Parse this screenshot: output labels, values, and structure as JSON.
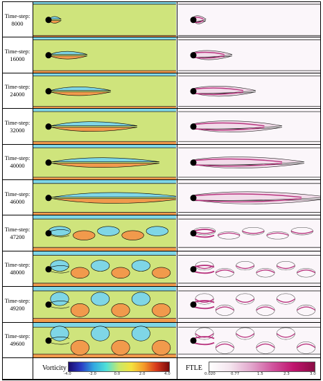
{
  "rows": [
    {
      "label": "Time-step:",
      "step": "8000",
      "stage": 0
    },
    {
      "label": "Time-step:",
      "step": "16000",
      "stage": 1
    },
    {
      "label": "Time-step:",
      "step": "24000",
      "stage": 2
    },
    {
      "label": "Time-step:",
      "step": "32000",
      "stage": 3
    },
    {
      "label": "Time-step:",
      "step": "40000",
      "stage": 4
    },
    {
      "label": "Time-step:",
      "step": "46000",
      "stage": 5
    },
    {
      "label": "Time-step:",
      "step": "47200",
      "stage": 6
    },
    {
      "label": "Time-step:",
      "step": "48000",
      "stage": 7
    },
    {
      "label": "Time-step:",
      "step": "49200",
      "stage": 8
    },
    {
      "label": "Time-step:",
      "step": "49600",
      "stage": 9
    }
  ],
  "colorbars": {
    "vorticity": {
      "title": "Vorticity",
      "ticks": [
        "-4.0",
        "-2.0",
        "0.0",
        "2.0",
        "4.0"
      ],
      "colors": [
        "#1a0a6e",
        "#2b3cc4",
        "#31a8e0",
        "#4fe0d8",
        "#c8e86a",
        "#f4e23e",
        "#f49a2a",
        "#d6381c",
        "#7a0a0a"
      ]
    },
    "ftle": {
      "title": "FTLE",
      "ticks": [
        "0.020",
        "0.77",
        "1.5",
        "2.3",
        "3.0"
      ],
      "colors": [
        "#ffffff",
        "#f4e4ee",
        "#e2a6cc",
        "#d0559e",
        "#c0156e",
        "#8a0d44"
      ]
    }
  },
  "field_colors": {
    "vort_bg": "#cfe47c",
    "vort_pos": "#f19a4c",
    "vort_neg": "#7fd6e6",
    "ftle_bg": "#fbf6fa",
    "ftle_ridge": "#b8337e"
  }
}
